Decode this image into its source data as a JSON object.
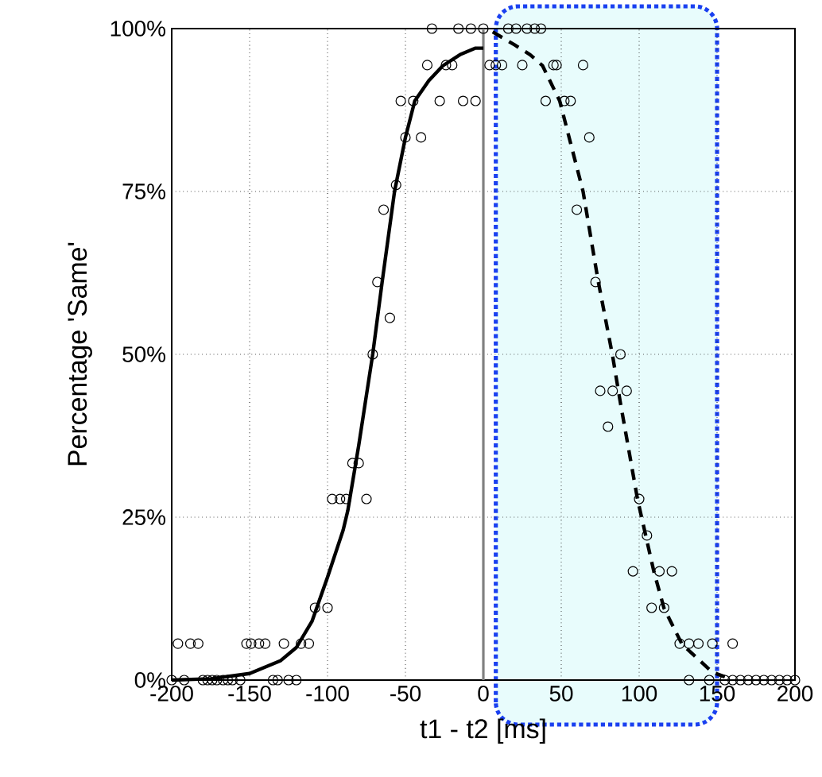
{
  "chart_data": {
    "type": "scatter",
    "xlabel": "t1 - t2  [ms]",
    "ylabel": "Percentage 'Same'",
    "xlim": [
      -200,
      200
    ],
    "ylim": [
      0,
      100
    ],
    "xticks": [
      -200,
      -150,
      -100,
      -50,
      0,
      50,
      100,
      150,
      200
    ],
    "yticks": [
      {
        "value": 0,
        "label": "0%"
      },
      {
        "value": 25,
        "label": "25%"
      },
      {
        "value": 50,
        "label": "50%"
      },
      {
        "value": 75,
        "label": "75%"
      },
      {
        "value": 100,
        "label": "100%"
      }
    ],
    "grid": true,
    "bands": [
      {
        "axis": "x",
        "from": 8,
        "to": 150,
        "color": "#e8fcfc"
      }
    ],
    "ref_lines": [
      {
        "axis": "x",
        "value": 0,
        "color": "#808080"
      }
    ],
    "series": [
      {
        "marker": "circle",
        "color": "#000000",
        "x": [
          -200,
          -192,
          -180,
          -177,
          -174,
          -171,
          -167,
          -164,
          -161,
          -156,
          -135,
          -132,
          -125,
          -120,
          132,
          145,
          155,
          160,
          165,
          170,
          175,
          180,
          185,
          190,
          195,
          200,
          -196,
          -188,
          -183,
          -152,
          -149,
          -144,
          -140,
          -128,
          -117,
          -112,
          126,
          132,
          138,
          147,
          160,
          -108,
          -100,
          108,
          116,
          96,
          113,
          121,
          105,
          -97,
          -92,
          -88,
          -75,
          100,
          -84,
          -80,
          80,
          75,
          83,
          92,
          -71,
          88,
          -60,
          -68,
          72,
          -64,
          60,
          -56,
          -50,
          -40,
          68,
          -53,
          -45,
          -28,
          -13,
          -5,
          40,
          52,
          56,
          -36,
          -24,
          -20,
          4,
          8,
          12,
          25,
          45,
          47,
          64,
          -33,
          -16,
          -8,
          0,
          16,
          21,
          28,
          33,
          37
        ],
        "values": [
          0,
          0,
          0,
          0,
          0,
          0,
          0,
          0,
          0,
          0,
          0,
          0,
          0,
          0,
          0,
          0,
          0,
          0,
          0,
          0,
          0,
          0,
          0,
          0,
          0,
          0,
          5.6,
          5.6,
          5.6,
          5.6,
          5.6,
          5.6,
          5.6,
          5.6,
          5.6,
          5.6,
          5.6,
          5.6,
          5.6,
          5.6,
          5.6,
          11.1,
          11.1,
          11.1,
          11.1,
          16.7,
          16.7,
          16.7,
          22.2,
          27.8,
          27.8,
          27.8,
          27.8,
          27.8,
          33.3,
          33.3,
          38.9,
          44.4,
          44.4,
          44.4,
          50,
          50,
          55.6,
          61.1,
          61.1,
          72.2,
          72.2,
          76,
          83.3,
          83.3,
          83.3,
          88.9,
          88.9,
          88.9,
          88.9,
          88.9,
          88.9,
          88.9,
          88.9,
          94.4,
          94.4,
          94.4,
          94.4,
          94.4,
          94.4,
          94.4,
          94.4,
          94.4,
          94.4,
          100,
          100,
          100,
          100,
          100,
          100,
          100,
          100,
          100
        ]
      },
      {
        "type": "line",
        "marker": "none",
        "line_style": "solid",
        "color": "#000000",
        "x": [
          -200,
          -175,
          -150,
          -130,
          -120,
          -110,
          -100,
          -90,
          -87,
          -80,
          -71,
          -65,
          -57,
          -50,
          -44,
          -35,
          -26,
          -15,
          -5,
          0
        ],
        "values": [
          0,
          0.2,
          1,
          3,
          5,
          9,
          15.8,
          23,
          26,
          36,
          50,
          61,
          75,
          83.3,
          88.9,
          92,
          94.3,
          96,
          97,
          97
        ]
      },
      {
        "type": "line",
        "marker": "none",
        "line_style": "dashed",
        "color": "#000000",
        "x": [
          6,
          20,
          30,
          38,
          49,
          64,
          73.5,
          83,
          88,
          99,
          109.5,
          116,
          127.5,
          147,
          155
        ],
        "values": [
          99.5,
          97.5,
          96,
          94.3,
          88.9,
          75,
          61.5,
          49.7,
          42.5,
          27.7,
          16.6,
          11,
          5.5,
          1.2,
          0.5
        ]
      }
    ]
  }
}
